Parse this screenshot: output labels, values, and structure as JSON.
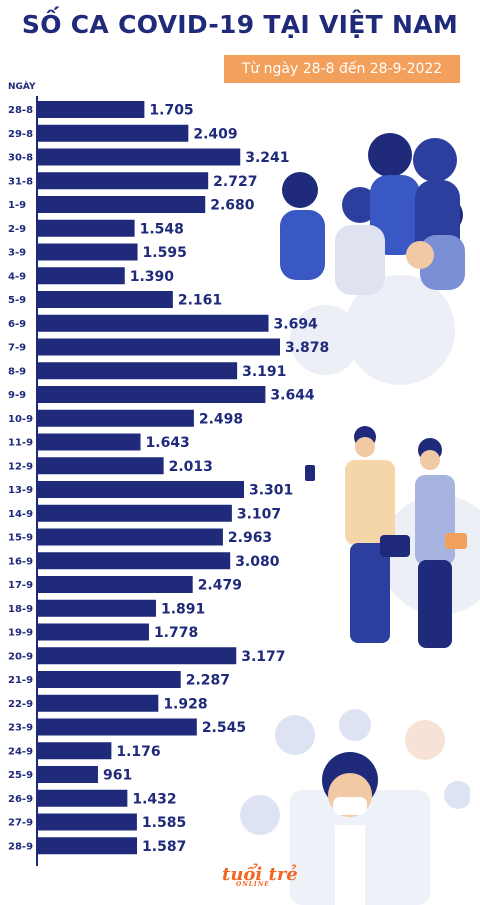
{
  "title": "SỐ CA COVID-19 TẠI VIỆT NAM",
  "subtitle": "Từ ngày 28-8 đến 28-9-2022",
  "colors": {
    "bar": "#1f2a7a",
    "accent": "#f2a05c",
    "logo": "#f26522"
  },
  "logo": {
    "text": "tuổi trẻ",
    "subtext": "ONLINE"
  },
  "chart_data": {
    "type": "bar",
    "orientation": "horizontal",
    "title": "SỐ CA COVID-19 TẠI VIỆT NAM",
    "subtitle": "Từ ngày 28-8 đến 28-9-2022",
    "ylabel": "NGÀY",
    "categories": [
      "28-8",
      "29-8",
      "30-8",
      "31-8",
      "1-9",
      "2-9",
      "3-9",
      "4-9",
      "5-9",
      "6-9",
      "7-9",
      "8-9",
      "9-9",
      "10-9",
      "11-9",
      "12-9",
      "13-9",
      "14-9",
      "15-9",
      "16-9",
      "17-9",
      "18-9",
      "19-9",
      "20-9",
      "21-9",
      "22-9",
      "23-9",
      "24-9",
      "25-9",
      "26-9",
      "27-9",
      "28-9"
    ],
    "values": [
      1705,
      2409,
      3241,
      2727,
      2680,
      1548,
      1595,
      1390,
      2161,
      3694,
      3878,
      3191,
      3644,
      2498,
      1643,
      2013,
      3301,
      3107,
      2963,
      3080,
      2479,
      1891,
      1778,
      3177,
      2287,
      1928,
      2545,
      1176,
      961,
      1432,
      1585,
      1587
    ],
    "value_labels": [
      "1.705",
      "2.409",
      "3.241",
      "2.727",
      "2.680",
      "1.548",
      "1.595",
      "1.390",
      "2.161",
      "3.694",
      "3.878",
      "3.191",
      "3.644",
      "2.498",
      "1.643",
      "2.013",
      "3.301",
      "3.107",
      "2.963",
      "3.080",
      "2.479",
      "1.891",
      "1.778",
      "3.177",
      "2.287",
      "1.928",
      "2.545",
      "1.176",
      "961",
      "1.432",
      "1.585",
      "1.587"
    ],
    "grid": false,
    "legend": "none"
  }
}
